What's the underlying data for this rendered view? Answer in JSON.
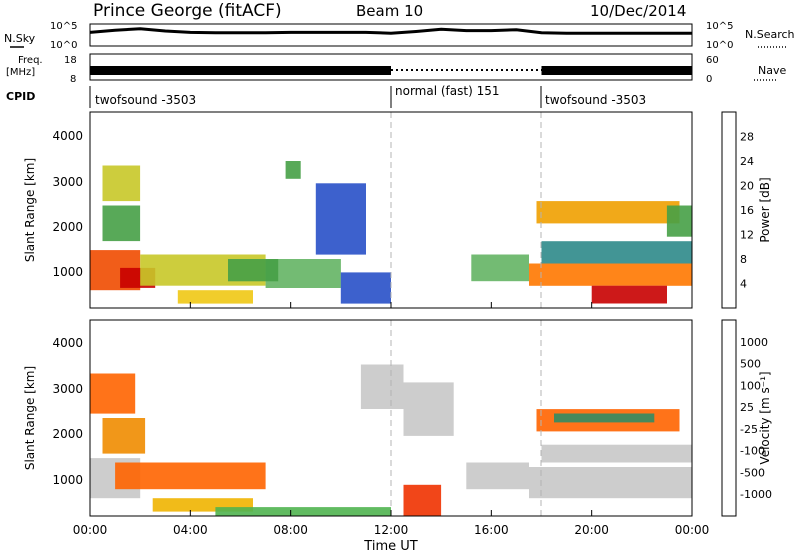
{
  "header": {
    "station": "Prince George (fitACF)",
    "beam": "Beam 10",
    "date": "10/Dec/2014"
  },
  "panel_labels": {
    "nsky": "N.Sky",
    "nsearch": "N.Search",
    "freq": "Freq.",
    "freq_unit": "[MHz]",
    "nave": "Nave",
    "cpid": "CPID"
  },
  "colors": {
    "noise_line": "#000000",
    "grid_dash": "#b4b4b4"
  },
  "chart_data": [
    {
      "type": "line",
      "name": "noise",
      "yticks": [
        "10^5",
        "10^0"
      ],
      "x": [
        0,
        1,
        2,
        3,
        4,
        5,
        6,
        7,
        8,
        9,
        10,
        11,
        12,
        13,
        14,
        15,
        16,
        17,
        18,
        19,
        20,
        21,
        22,
        23,
        24
      ],
      "series": [
        {
          "values": [
            0.62,
            0.72,
            0.78,
            0.68,
            0.62,
            0.6,
            0.6,
            0.6,
            0.62,
            0.62,
            0.62,
            0.62,
            0.58,
            0.66,
            0.76,
            0.7,
            0.7,
            0.74,
            0.6,
            0.58,
            0.58,
            0.58,
            0.58,
            0.58,
            0.58
          ]
        }
      ],
      "ylim": [
        0,
        1
      ]
    },
    {
      "type": "bar",
      "name": "frequency",
      "yticks_left": [
        "18",
        "8"
      ],
      "yticks_right": [
        "60",
        "0"
      ],
      "segments": [
        {
          "start": 0,
          "end": 12,
          "style": "solid"
        },
        {
          "start": 12,
          "end": 18,
          "style": "dotted"
        },
        {
          "start": 18,
          "end": 24,
          "style": "solid"
        }
      ]
    },
    {
      "type": "table",
      "name": "cpid",
      "x": [
        0,
        12,
        18
      ],
      "labels": [
        "twofsound -3503",
        "normal (fast) 151",
        "twofsound -3503"
      ]
    },
    {
      "type": "heatmap",
      "name": "power",
      "ylabel": "Slant Range [km]",
      "ylim": [
        200,
        4600
      ],
      "yticks": [
        1000,
        2000,
        3000,
        4000
      ],
      "xlim": [
        0,
        24
      ],
      "colorbar_label": "Power [dB]",
      "colorbar_ticks": [
        "28",
        "24",
        "20",
        "16",
        "12",
        "8",
        "4"
      ],
      "colorbar_colors": [
        "#1414f0",
        "#2850c8",
        "#2d8a8a",
        "#46a046",
        "#64b464",
        "#c8c828",
        "#f0c814",
        "#f0a000",
        "#ff7800",
        "#f04b00",
        "#e62800",
        "#c80000"
      ],
      "regions": [
        {
          "x0": 0.0,
          "x1": 2.0,
          "y0": 600,
          "y1": 1500,
          "level": 9
        },
        {
          "x0": 1.2,
          "x1": 2.6,
          "y0": 650,
          "y1": 1100,
          "level": 11
        },
        {
          "x0": 2.0,
          "x1": 7.0,
          "y0": 700,
          "y1": 1400,
          "level": 5
        },
        {
          "x0": 7.0,
          "x1": 10.0,
          "y0": 650,
          "y1": 1300,
          "level": 4
        },
        {
          "x0": 10.0,
          "x1": 12.0,
          "y0": 300,
          "y1": 1000,
          "level": 1
        },
        {
          "x0": 0.5,
          "x1": 2.0,
          "y0": 1700,
          "y1": 2500,
          "level": 3
        },
        {
          "x0": 0.5,
          "x1": 2.0,
          "y0": 2600,
          "y1": 3400,
          "level": 5
        },
        {
          "x0": 3.5,
          "x1": 6.5,
          "y0": 300,
          "y1": 600,
          "level": 6
        },
        {
          "x0": 5.5,
          "x1": 7.5,
          "y0": 800,
          "y1": 1300,
          "level": 3
        },
        {
          "x0": 9.0,
          "x1": 11.0,
          "y0": 1400,
          "y1": 3000,
          "level": 1
        },
        {
          "x0": 7.8,
          "x1": 8.4,
          "y0": 3100,
          "y1": 3500,
          "level": 3
        },
        {
          "x0": 15.2,
          "x1": 17.5,
          "y0": 800,
          "y1": 1400,
          "level": 4
        },
        {
          "x0": 17.5,
          "x1": 24.0,
          "y0": 700,
          "y1": 1200,
          "level": 8
        },
        {
          "x0": 20.0,
          "x1": 23.0,
          "y0": 300,
          "y1": 700,
          "level": 11
        },
        {
          "x0": 18.0,
          "x1": 24.0,
          "y0": 1200,
          "y1": 1700,
          "level": 2
        },
        {
          "x0": 17.8,
          "x1": 23.5,
          "y0": 2100,
          "y1": 2600,
          "level": 7
        },
        {
          "x0": 23.0,
          "x1": 24.0,
          "y0": 1800,
          "y1": 2500,
          "level": 3
        }
      ]
    },
    {
      "type": "heatmap",
      "name": "velocity",
      "ylabel": "Slant Range [km]",
      "ylim": [
        200,
        4600
      ],
      "yticks": [
        1000,
        2000,
        3000,
        4000
      ],
      "xlabel": "Time UT",
      "xlim": [
        0,
        24
      ],
      "xticks": [
        "00:00",
        "04:00",
        "08:00",
        "12:00",
        "16:00",
        "20:00",
        "00:00"
      ],
      "colorbar_label": "Velocity [m s⁻¹]",
      "colorbar_ticks": [
        "1000",
        "500",
        "100",
        "25",
        "-25",
        "-100",
        "-500",
        "-1000"
      ],
      "colorbar_colors": [
        "#1e3cc8",
        "#326eb4",
        "#328c64",
        "#50b450",
        "#c8c8c8",
        "#c8c8c8",
        "#f0b400",
        "#f08c00",
        "#ff6400",
        "#f03200",
        "#dc0000"
      ],
      "regions": [
        {
          "x0": 0.0,
          "x1": 2.0,
          "y0": 600,
          "y1": 1500,
          "level": 4
        },
        {
          "x0": 1.0,
          "x1": 7.0,
          "y0": 800,
          "y1": 1400,
          "level": 8
        },
        {
          "x0": 2.5,
          "x1": 6.5,
          "y0": 300,
          "y1": 600,
          "level": 6
        },
        {
          "x0": 5.0,
          "x1": 12.0,
          "y0": 200,
          "y1": 400,
          "level": 3
        },
        {
          "x0": 0.0,
          "x1": 1.8,
          "y0": 2500,
          "y1": 3400,
          "level": 8
        },
        {
          "x0": 0.5,
          "x1": 2.2,
          "y0": 1600,
          "y1": 2400,
          "level": 7
        },
        {
          "x0": 12.5,
          "x1": 14.0,
          "y0": 200,
          "y1": 900,
          "level": 9
        },
        {
          "x0": 10.8,
          "x1": 12.5,
          "y0": 2600,
          "y1": 3600,
          "level": 4
        },
        {
          "x0": 12.5,
          "x1": 14.5,
          "y0": 2000,
          "y1": 3200,
          "level": 5
        },
        {
          "x0": 15.0,
          "x1": 17.5,
          "y0": 800,
          "y1": 1400,
          "level": 5
        },
        {
          "x0": 17.5,
          "x1": 24.0,
          "y0": 600,
          "y1": 1300,
          "level": 5
        },
        {
          "x0": 18.0,
          "x1": 24.0,
          "y0": 1400,
          "y1": 1800,
          "level": 4
        },
        {
          "x0": 17.8,
          "x1": 23.5,
          "y0": 2100,
          "y1": 2600,
          "level": 8
        },
        {
          "x0": 18.5,
          "x1": 22.5,
          "y0": 2300,
          "y1": 2500,
          "level": 2
        }
      ]
    }
  ]
}
